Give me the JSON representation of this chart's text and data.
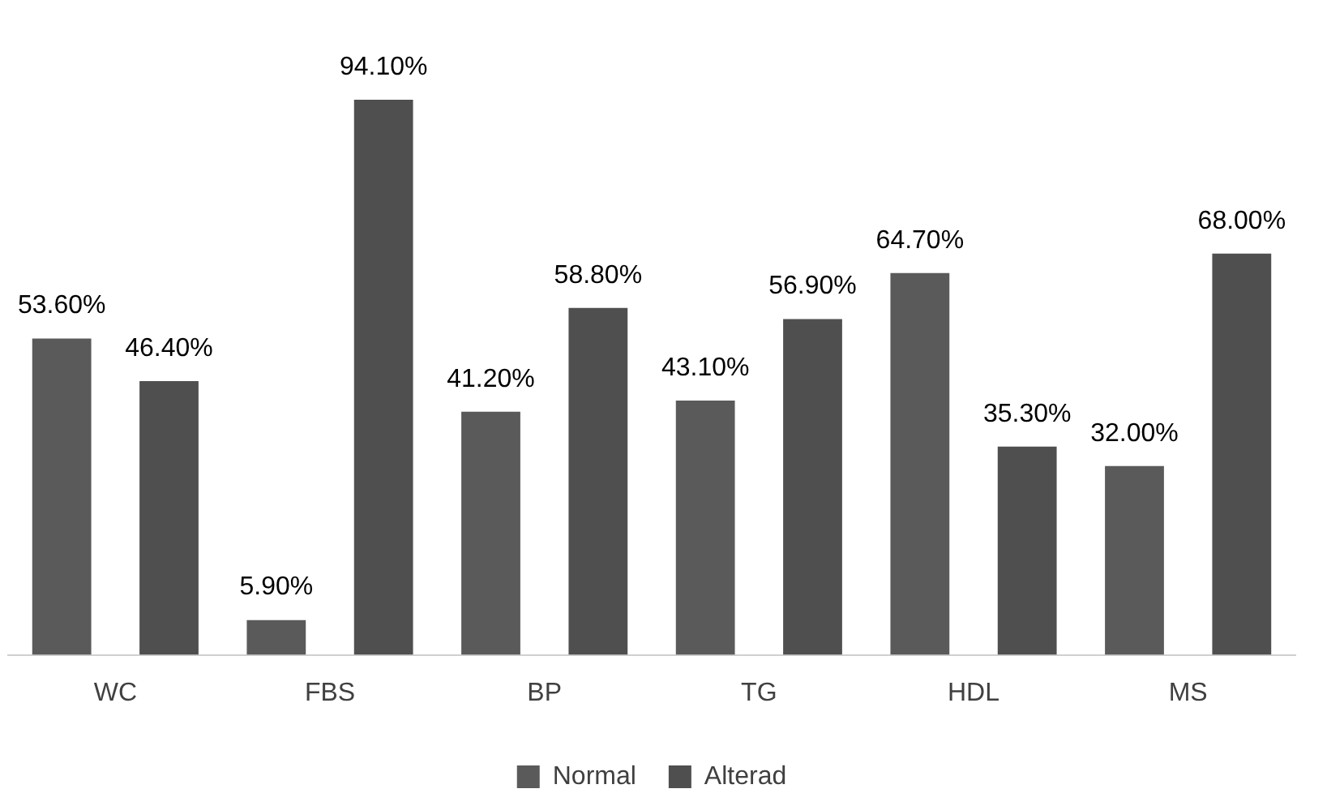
{
  "chart_data": {
    "type": "bar",
    "categories": [
      "WC",
      "FBS",
      "BP",
      "TG",
      "HDL",
      "MS"
    ],
    "series": [
      {
        "name": "Normal",
        "color": "#5a5a5a",
        "values": [
          53.6,
          5.9,
          41.2,
          43.1,
          64.7,
          32.0
        ],
        "value_labels": [
          "53.60%",
          "5.90%",
          "41.20%",
          "43.10%",
          "64.70%",
          "32.00%"
        ]
      },
      {
        "name": "Alterad",
        "color": "#4f4f4f",
        "values": [
          46.4,
          94.1,
          58.8,
          56.9,
          35.3,
          68.0
        ],
        "value_labels": [
          "46.40%",
          "94.10%",
          "58.80%",
          "56.90%",
          "35.30%",
          "68.00%"
        ]
      }
    ],
    "grid": false,
    "legend": "bottom",
    "tick_labels": "x"
  }
}
